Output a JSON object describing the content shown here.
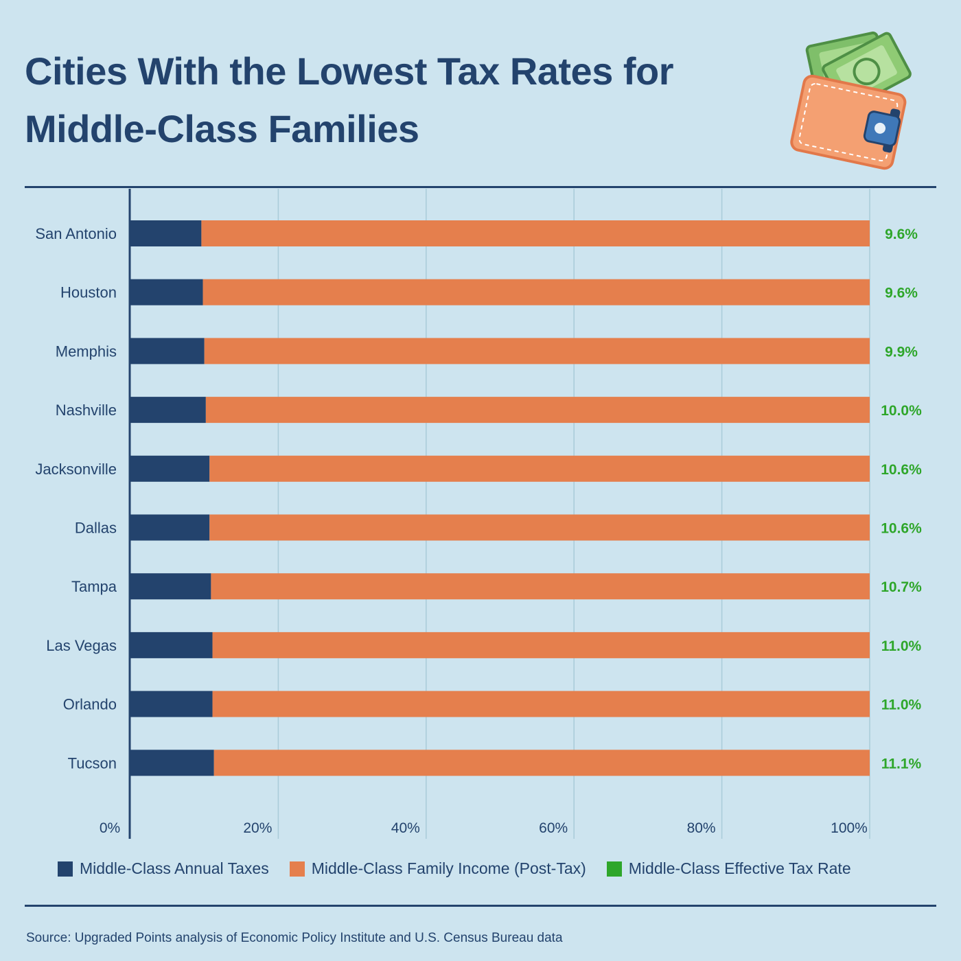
{
  "header": {
    "title": "Cities With the Lowest Tax Rates for Middle-Class Families"
  },
  "colors": {
    "background": "#cde4ef",
    "taxes": "#23436d",
    "income": "#e57f4d",
    "rate": "#2ea62a",
    "grid": "#a9cbd9"
  },
  "icons": {
    "header_icon": "wallet-with-money-icon"
  },
  "chart_data": {
    "type": "bar",
    "orientation": "horizontal",
    "stacked": true,
    "categories": [
      "San Antonio",
      "Houston",
      "Memphis",
      "Nashville",
      "Jacksonville",
      "Dallas",
      "Tampa",
      "Las Vegas",
      "Orlando",
      "Tucson"
    ],
    "series": [
      {
        "name": "Middle-Class Annual Taxes",
        "values": [
          9.6,
          9.8,
          10.0,
          10.2,
          10.7,
          10.7,
          10.9,
          11.1,
          11.1,
          11.3
        ]
      },
      {
        "name": "Middle-Class Family Income (Post-Tax)",
        "values": [
          90.4,
          90.2,
          90.0,
          89.8,
          89.3,
          89.3,
          89.1,
          88.9,
          88.9,
          88.7
        ]
      }
    ],
    "effective_tax_rate": {
      "name": "Middle-Class Effective Tax Rate",
      "labels": [
        "9.6%",
        "9.6%",
        "9.9%",
        "10.0%",
        "10.6%",
        "10.6%",
        "10.7%",
        "11.0%",
        "11.0%",
        "11.1%"
      ]
    },
    "x_ticks": [
      "0%",
      "20%",
      "40%",
      "60%",
      "80%",
      "100%"
    ],
    "xlim": [
      0,
      100
    ],
    "grid": true,
    "legend_position": "bottom"
  },
  "legend": [
    {
      "label": "Middle-Class Annual Taxes",
      "color": "#23436d"
    },
    {
      "label": "Middle-Class Family Income (Post-Tax)",
      "color": "#e57f4d"
    },
    {
      "label": "Middle-Class Effective Tax Rate",
      "color": "#2ea62a"
    }
  ],
  "footer": {
    "source": "Source: Upgraded Points analysis of Economic Policy Institute and U.S. Census Bureau data"
  }
}
